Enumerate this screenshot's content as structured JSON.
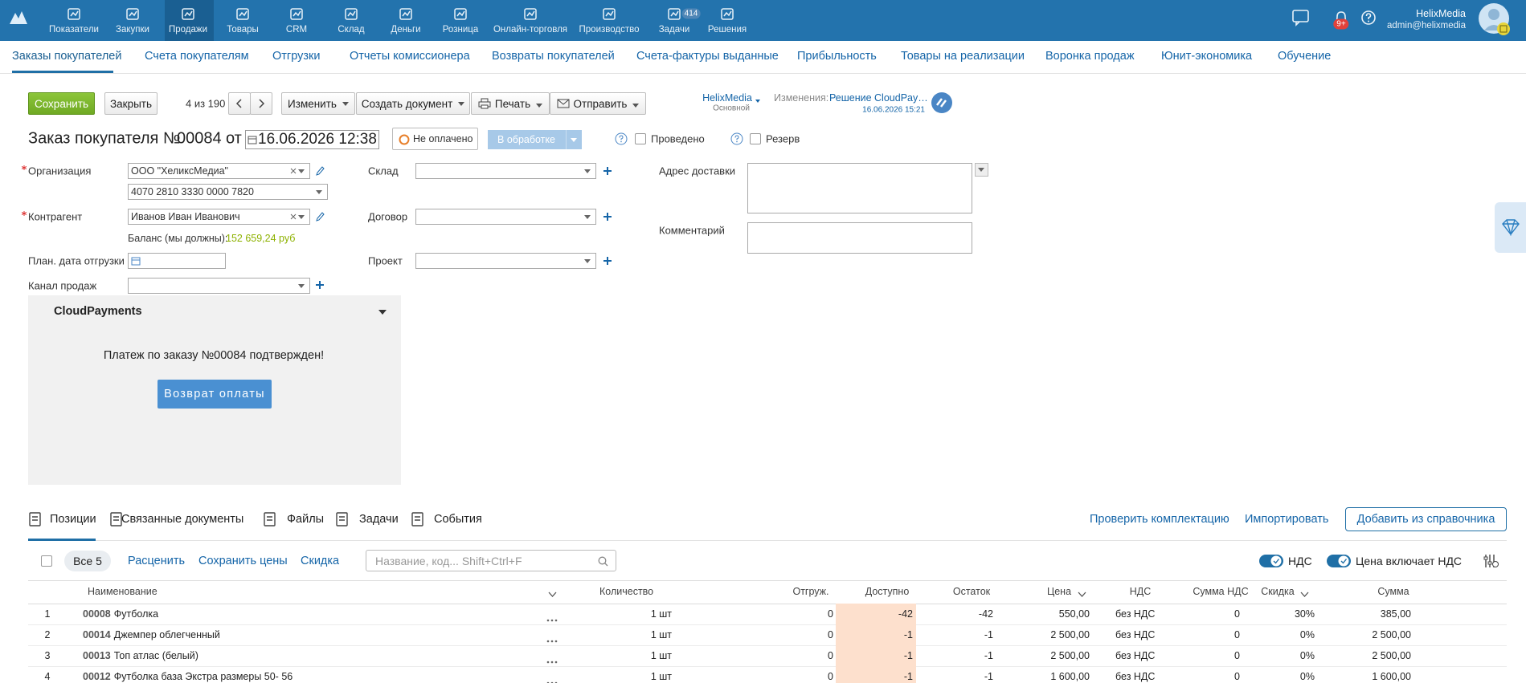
{
  "topnav": {
    "items": [
      "Показатели",
      "Закупки",
      "Продажи",
      "Товары",
      "CRM",
      "Склад",
      "Деньги",
      "Розница",
      "Онлайн-торговля",
      "Производство",
      "Задачи",
      "Решения"
    ],
    "tasks_badge": "414",
    "notifications_badge": "9+",
    "user_name": "HelixMedia",
    "user_email": "admin@helixmedia"
  },
  "subnav": [
    "Заказы покупателей",
    "Счета покупателям",
    "Отгрузки",
    "Отчеты комиссионера",
    "Возвраты покупателей",
    "Счета-фактуры выданные",
    "Прибыльность",
    "Товары на реализации",
    "Воронка продаж",
    "Юнит-экономика",
    "Обучение"
  ],
  "toolbar": {
    "save": "Сохранить",
    "close": "Закрыть",
    "counter": "4 из 190",
    "change": "Изменить",
    "create": "Создать документ",
    "print": "Печать",
    "send": "Отправить",
    "account_name": "HelixMedia",
    "account_sub": "Основной",
    "changes_label": "Изменения:",
    "changes_link": "Решение CloudPay…",
    "changes_date": "16.06.2026 15:21"
  },
  "header": {
    "title": "Заказ покупателя №",
    "number": "00084",
    "from": "от",
    "date": "16.06.2026 12:38",
    "payment_status": "Не оплачено",
    "state": "В обработке",
    "posted": "Проведено",
    "reserve": "Резерв"
  },
  "form": {
    "organization_label": "Организация",
    "organization": "ООО \"ХеликсМедиа\"",
    "account": "4070 2810 3330 0000 7820",
    "counterparty_label": "Контрагент",
    "counterparty": "Иванов Иван Иванович",
    "balance_label": "Баланс (мы должны):",
    "balance": "152 659,24 руб",
    "shipment_date_label": "План. дата отгрузки",
    "channel_label": "Канал продаж",
    "warehouse_label": "Склад",
    "contract_label": "Договор",
    "project_label": "Проект",
    "address_label": "Адрес доставки",
    "comment_label": "Комментарий"
  },
  "cloudpayments": {
    "title": "CloudPayments",
    "message": "Платеж по заказу №00084 подтвержден!",
    "button": "Возврат оплаты"
  },
  "tabs": [
    "Позиции",
    "Связанные документы",
    "Файлы",
    "Задачи",
    "События"
  ],
  "actions": {
    "check": "Проверить комплектацию",
    "import": "Импортировать",
    "add": "Добавить из справочника"
  },
  "positions_toolbar": {
    "all": "Все 5",
    "reprice": "Расценить",
    "save_prices": "Сохранить цены",
    "discount": "Скидка",
    "search_placeholder": "Название, код... Shift+Ctrl+F",
    "vat": "НДС",
    "price_incl_vat": "Цена включает НДС"
  },
  "table": {
    "columns": [
      "Наименование",
      "Количество",
      "Отгруж.",
      "Доступно",
      "Остаток",
      "Цена",
      "НДС",
      "Сумма НДС",
      "Скидка",
      "Сумма"
    ],
    "rows": [
      {
        "num": "1",
        "code": "00008",
        "name": "Футболка",
        "qty": "1 шт",
        "shipped": "0",
        "available": "-42",
        "remainder": "-42",
        "price": "550,00",
        "vat": "без НДС",
        "vat_sum": "0",
        "discount": "30%",
        "sum": "385,00"
      },
      {
        "num": "2",
        "code": "00014",
        "name": "Джемпер облегченный",
        "qty": "1 шт",
        "shipped": "0",
        "available": "-1",
        "remainder": "-1",
        "price": "2 500,00",
        "vat": "без НДС",
        "vat_sum": "0",
        "discount": "0%",
        "sum": "2 500,00"
      },
      {
        "num": "3",
        "code": "00013",
        "name": "Топ атлас (белый)",
        "qty": "1 шт",
        "shipped": "0",
        "available": "-1",
        "remainder": "-1",
        "price": "2 500,00",
        "vat": "без НДС",
        "vat_sum": "0",
        "discount": "0%",
        "sum": "2 500,00"
      },
      {
        "num": "4",
        "code": "00012",
        "name": "Футболка база Экстра размеры 50- 56",
        "qty": "1 шт",
        "shipped": "0",
        "available": "-1",
        "remainder": "-1",
        "price": "1 600,00",
        "vat": "без НДС",
        "vat_sum": "0",
        "discount": "0%",
        "sum": "1 600,00"
      }
    ]
  }
}
